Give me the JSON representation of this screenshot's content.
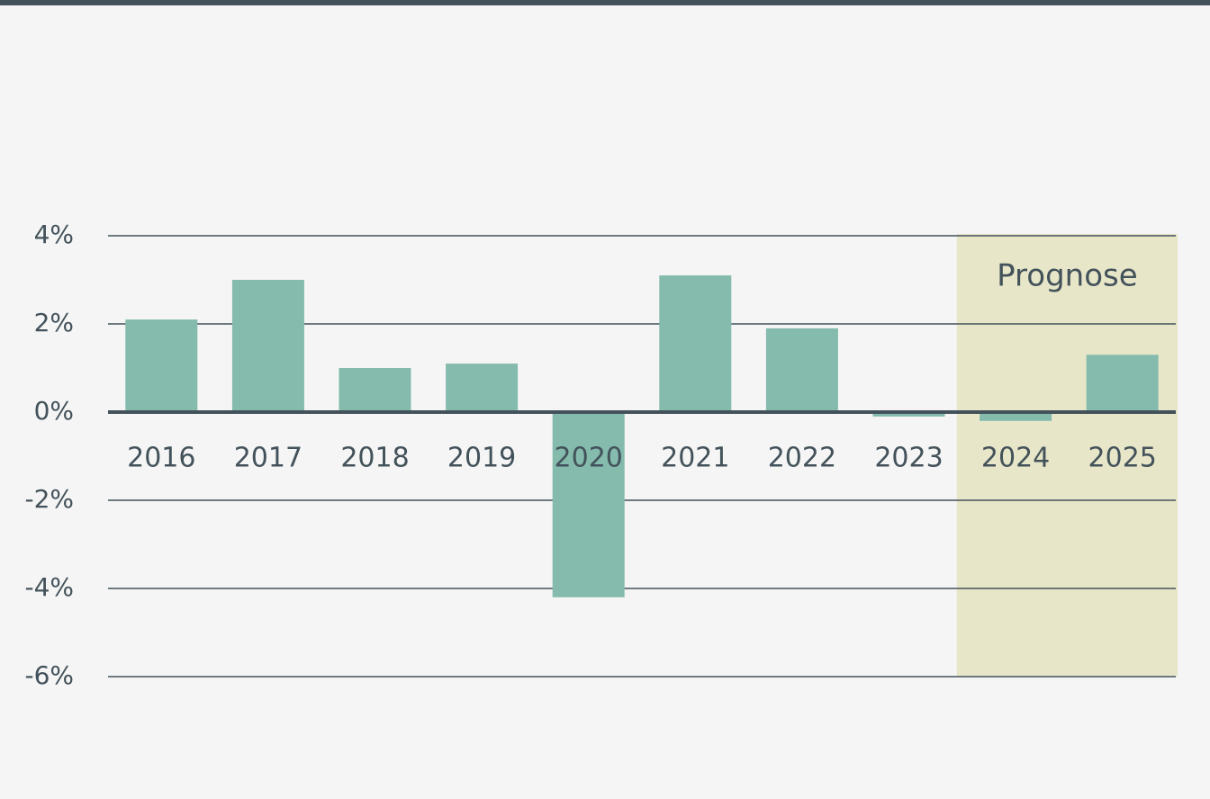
{
  "chart_data": {
    "type": "bar",
    "categories": [
      "2016",
      "2017",
      "2018",
      "2019",
      "2020",
      "2021",
      "2022",
      "2023",
      "2024",
      "2025"
    ],
    "values": [
      2.1,
      3.0,
      1.0,
      1.1,
      -4.2,
      3.1,
      1.9,
      -0.1,
      -0.2,
      1.3
    ],
    "color": "#84bbad",
    "ylim": [
      -6,
      4
    ],
    "yticks": [
      {
        "value": -6,
        "label": "-6%"
      },
      {
        "value": -4,
        "label": "-4%"
      },
      {
        "value": -2,
        "label": "-2%"
      },
      {
        "value": 0,
        "label": "0%"
      },
      {
        "value": 2,
        "label": "2%"
      },
      {
        "value": 4,
        "label": "4%"
      }
    ],
    "grid": true,
    "annotation": {
      "text": "Prognose",
      "from": "2024",
      "to": "2025",
      "color": "#e8e6c8"
    }
  }
}
